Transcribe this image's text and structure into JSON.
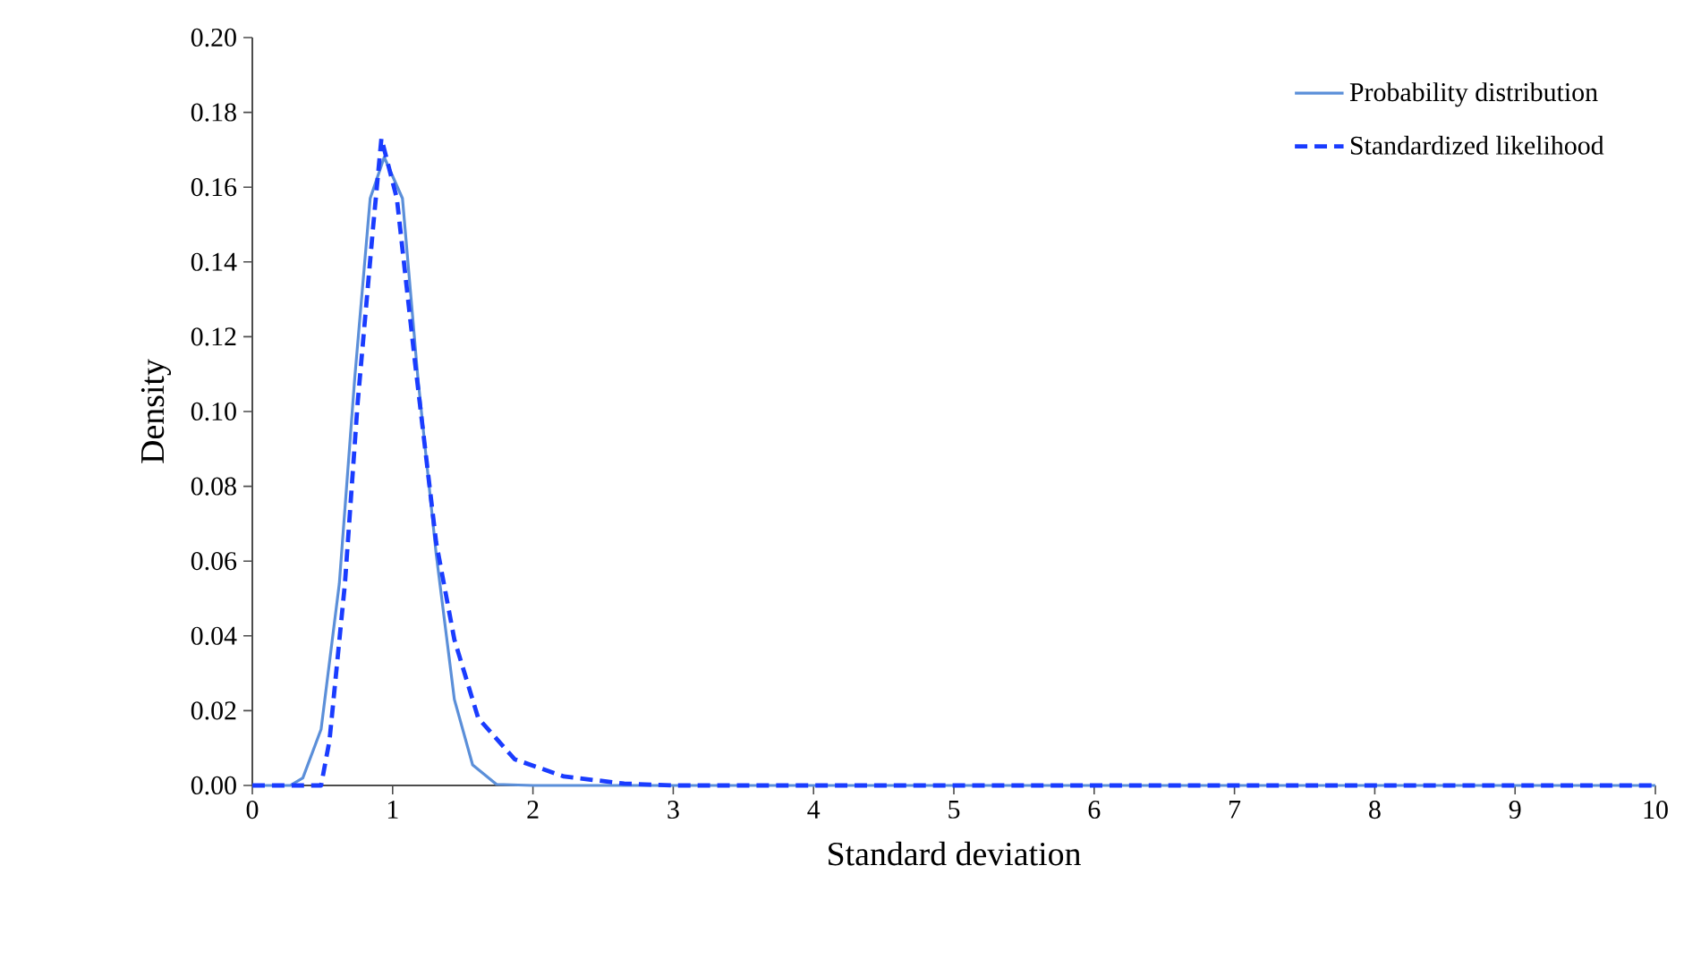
{
  "chart_data": {
    "type": "line",
    "xlabel": "Standard deviation",
    "ylabel": "Density",
    "xlim": [
      0,
      10
    ],
    "xticks": [
      0,
      1,
      2,
      3,
      4,
      5,
      6,
      7,
      8,
      9,
      10
    ],
    "ylim": [
      0,
      0.2
    ],
    "yticks": [
      {
        "value": 0,
        "label": "0.00"
      },
      {
        "value": 0.02,
        "label": "0.02"
      },
      {
        "value": 0.04,
        "label": "0.04"
      },
      {
        "value": 0.06,
        "label": "0.06"
      },
      {
        "value": 0.08,
        "label": "0.08"
      },
      {
        "value": 0.1,
        "label": "0.10"
      },
      {
        "value": 0.12,
        "label": "0.12"
      },
      {
        "value": 0.14,
        "label": "0.14"
      },
      {
        "value": 0.16,
        "label": "0.16"
      },
      {
        "value": 0.18,
        "label": "0.18"
      },
      {
        "value": 0.2,
        "label": "0.20"
      }
    ],
    "grid": false,
    "legend": "top right",
    "series": [
      {
        "name": "Probability distribution",
        "color": "#5b8fd9",
        "line_style": "solid",
        "x": [
          0,
          0.27,
          0.36,
          0.49,
          0.62,
          0.73,
          0.84,
          0.94,
          1.07,
          1.18,
          1.31,
          1.44,
          1.57,
          1.74,
          2.0,
          10
        ],
        "values": [
          0,
          0,
          0.002,
          0.015,
          0.054,
          0.109,
          0.157,
          0.168,
          0.157,
          0.109,
          0.062,
          0.023,
          0.0055,
          0.0003,
          0,
          0
        ]
      },
      {
        "name": "Standardized likelihood",
        "color": "#1a3cff",
        "line_style": "dashed",
        "x": [
          0,
          0.49,
          0.55,
          0.66,
          0.75,
          0.86,
          0.92,
          1.03,
          1.16,
          1.31,
          1.44,
          1.61,
          1.87,
          2.22,
          2.65,
          3.0,
          10
        ],
        "values": [
          0,
          0,
          0.012,
          0.054,
          0.102,
          0.149,
          0.173,
          0.157,
          0.113,
          0.065,
          0.039,
          0.018,
          0.007,
          0.0024,
          0.0005,
          0,
          0
        ]
      }
    ]
  }
}
